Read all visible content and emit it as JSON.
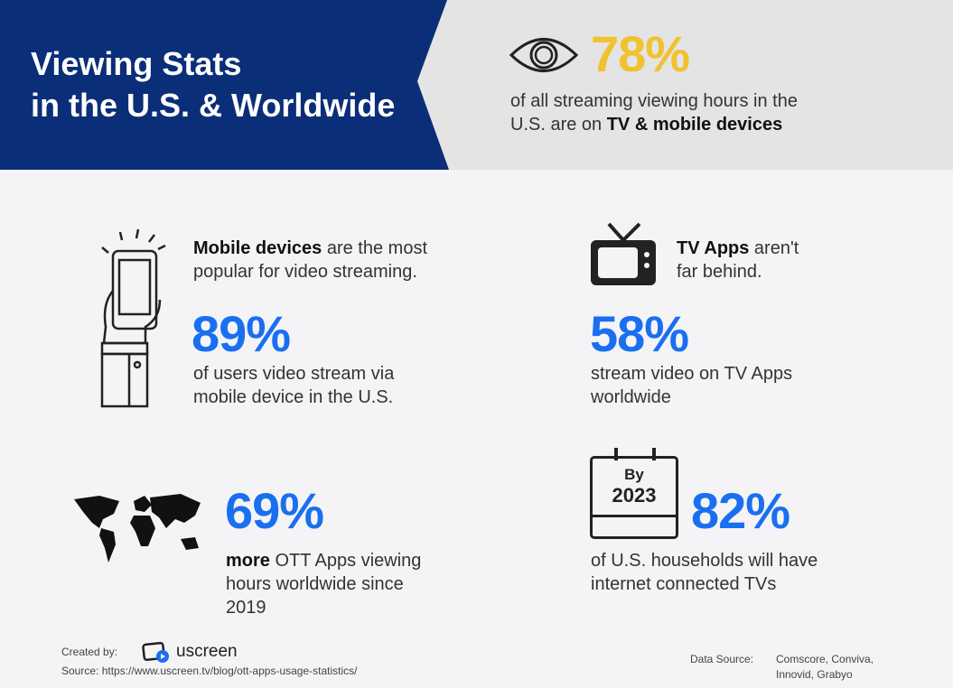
{
  "header": {
    "title_line1": "Viewing Stats",
    "title_line2": "in the U.S. & Worldwide"
  },
  "hero": {
    "value": "78%",
    "text1": "of all streaming viewing hours in the",
    "text2": "U.S. are on ",
    "text_bold": "TV & mobile devices"
  },
  "mobile": {
    "head_bold": "Mobile devices",
    "head_rest": " are the most",
    "head_line2": "popular for ",
    "head_bold2": "video streaming.",
    "value": "89%",
    "desc1": "of users video stream via",
    "desc2": "mobile device in the U.S."
  },
  "tv": {
    "head_bold": "TV Apps",
    "head_rest": " aren't",
    "head_line2": "far behind.",
    "value": "58%",
    "desc1": "stream video on TV Apps",
    "desc2": "worldwide"
  },
  "ott": {
    "value": "69%",
    "desc_bold": "more",
    "desc1_rest": " OTT Apps viewing",
    "desc2": "hours worldwide since",
    "desc3": "2019"
  },
  "homes": {
    "cal_top": "By",
    "cal_year": "2023",
    "value": "82%",
    "desc1": "of U.S. households will have",
    "desc2": "internet connected TVs"
  },
  "footer": {
    "created_by": "Created by:",
    "brand": "uscreen",
    "source": "Source: https://www.uscreen.tv/blog/ott-apps-usage-statistics/",
    "data_source_label": "Data Source:",
    "data_source1": "Comscore, Conviva,",
    "data_source2": "Innovid, Grabyo"
  },
  "colors": {
    "navy": "#0b2e78",
    "yellow": "#f2c12e",
    "blue": "#1a6ff0",
    "gray": "#e4e4e4"
  }
}
